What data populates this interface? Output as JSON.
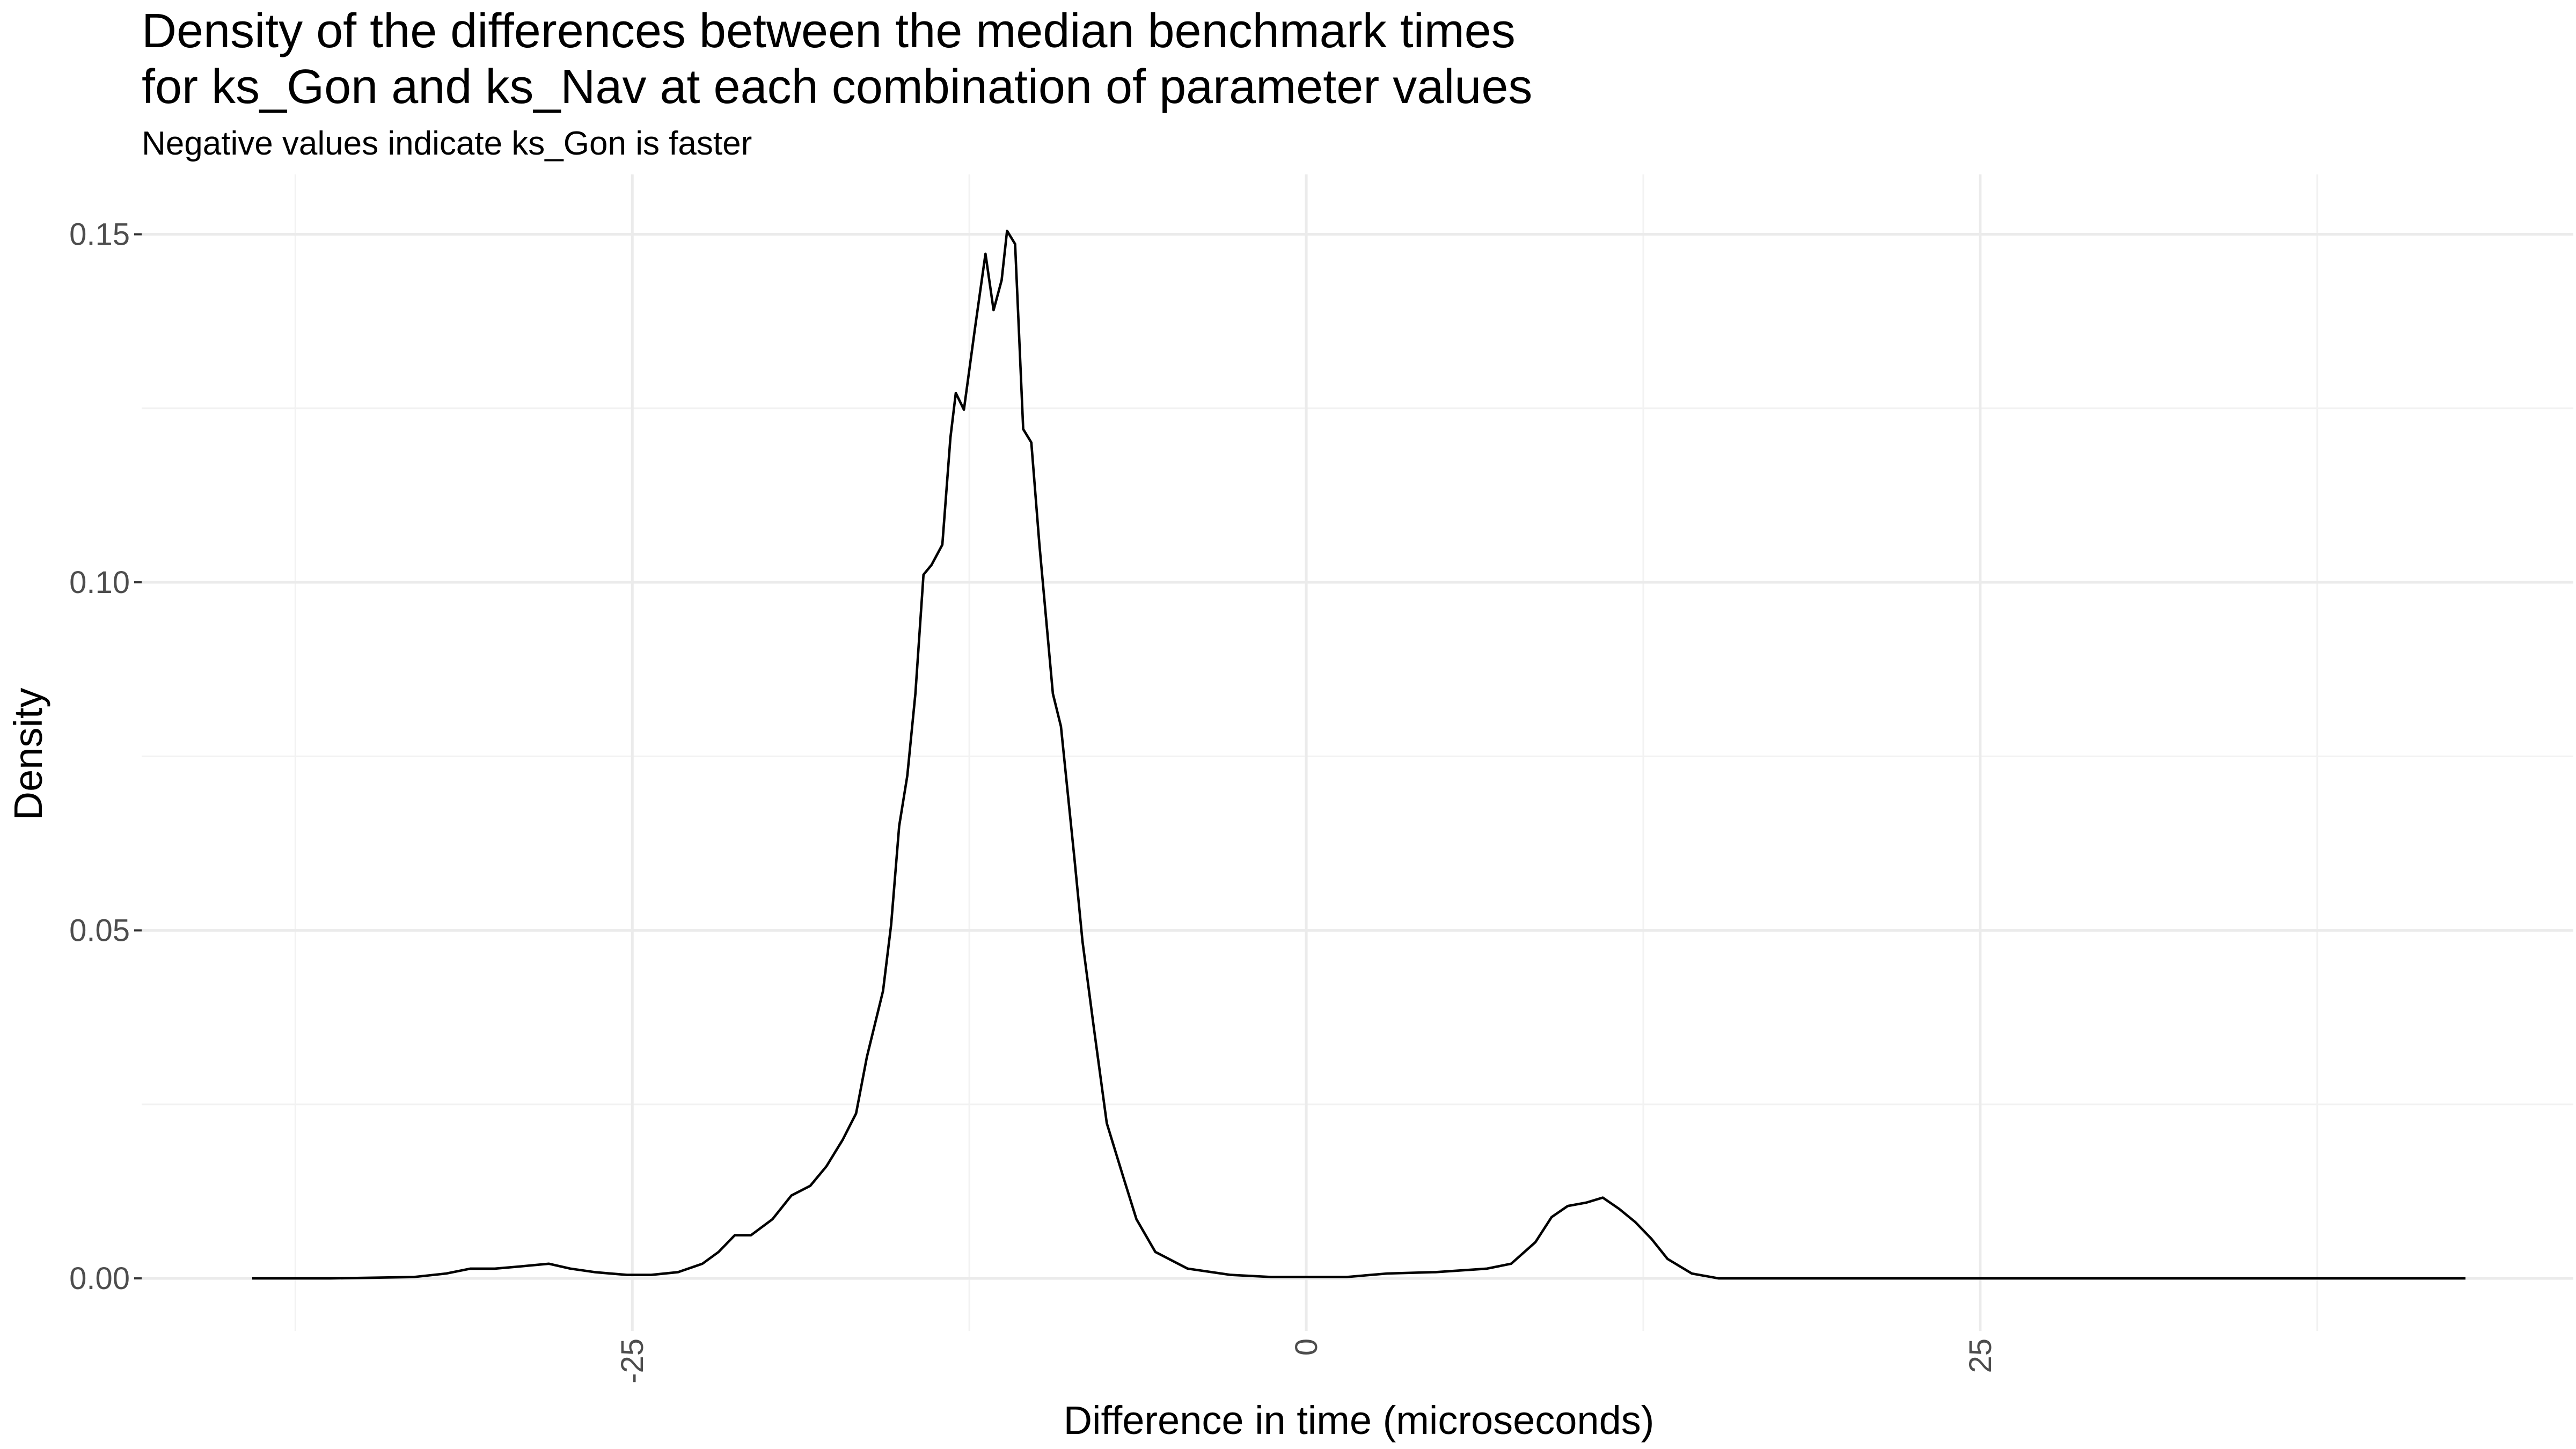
{
  "chart_data": {
    "type": "density",
    "title": [
      "Density of the differences between the median benchmark times",
      "for ks_Gon and ks_Nav at each combination of parameter values"
    ],
    "subtitle": "Negative values indicate ks_Gon is faster",
    "x_label": "Difference in time (microseconds)",
    "y_label": "Density",
    "xlim": [
      -43.2,
      47.0
    ],
    "ylim": [
      -0.00755,
      0.1586
    ],
    "xticks": [
      -25,
      0,
      25
    ],
    "yticks": [
      {
        "value": 0,
        "label": "0.00"
      },
      {
        "value": 0.05,
        "label": "0.05"
      },
      {
        "value": 0.1,
        "label": "0.10"
      },
      {
        "value": 0.15,
        "label": "0.15"
      }
    ],
    "grid": true,
    "color": "#000000",
    "x": [
      -39.1,
      -36.2,
      -33.1,
      -31.9,
      -31.0,
      -30.1,
      -29.2,
      -28.1,
      -27.3,
      -26.4,
      -25.2,
      -24.3,
      -23.3,
      -22.4,
      -21.8,
      -21.2,
      -20.6,
      -19.8,
      -19.1,
      -18.4,
      -17.8,
      -17.2,
      -16.7,
      -16.3,
      -15.7,
      -15.4,
      -15.1,
      -14.8,
      -14.5,
      -14.2,
      -13.9,
      -13.5,
      -13.2,
      -13.0,
      -12.7,
      -12.3,
      -11.9,
      -11.6,
      -11.3,
      -11.1,
      -10.8,
      -10.5,
      -10.2,
      -9.9,
      -9.4,
      -9.1,
      -8.6,
      -8.3,
      -7.9,
      -7.4,
      -6.8,
      -6.3,
      -5.6,
      -4.4,
      -2.8,
      -1.3,
      0.0,
      1.5,
      3.0,
      4.8,
      6.7,
      7.6,
      8.5,
      9.1,
      9.7,
      10.4,
      11.0,
      11.6,
      12.2,
      12.8,
      13.4,
      14.3,
      15.3,
      43.0
    ],
    "values": [
      0.0,
      0.0,
      0.0002,
      0.0007,
      0.0014,
      0.0014,
      0.0017,
      0.0021,
      0.0014,
      0.0009,
      0.0005,
      0.0005,
      0.0009,
      0.0021,
      0.0038,
      0.0062,
      0.0062,
      0.0085,
      0.0119,
      0.0133,
      0.0161,
      0.0199,
      0.0237,
      0.0318,
      0.0413,
      0.0508,
      0.065,
      0.0722,
      0.084,
      0.1011,
      0.1025,
      0.1054,
      0.1208,
      0.1272,
      0.1248,
      0.1362,
      0.1472,
      0.1391,
      0.1434,
      0.1505,
      0.1486,
      0.122,
      0.1201,
      0.1054,
      0.084,
      0.0793,
      0.0603,
      0.0484,
      0.0366,
      0.0223,
      0.0147,
      0.0085,
      0.0038,
      0.0014,
      0.0005,
      0.0002,
      0.0002,
      0.0002,
      0.0007,
      0.0009,
      0.0014,
      0.0021,
      0.0052,
      0.0088,
      0.0104,
      0.0109,
      0.0116,
      0.01,
      0.0081,
      0.0057,
      0.0028,
      0.0007,
      0.0,
      0.0
    ]
  }
}
